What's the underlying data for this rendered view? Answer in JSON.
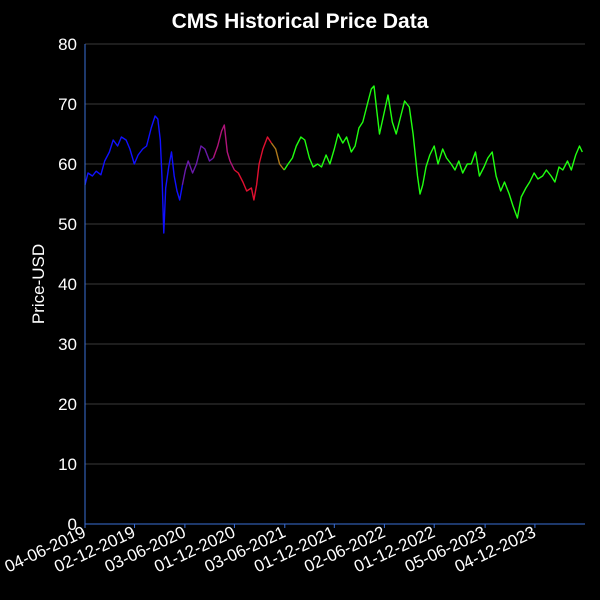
{
  "chart_data": {
    "type": "line",
    "title": "CMS Historical Price Data",
    "xlabel": "",
    "ylabel": "Price-USD",
    "ylim": [
      0,
      80
    ],
    "yticks": [
      0,
      10,
      20,
      30,
      40,
      50,
      60,
      70,
      80
    ],
    "xlim": [
      "2019-06-04",
      "2024-06-04"
    ],
    "xtick_labels": [
      "04-06-2019",
      "02-12-2019",
      "03-06-2020",
      "01-12-2020",
      "03-06-2021",
      "01-12-2021",
      "02-06-2022",
      "01-12-2022",
      "05-06-2023",
      "04-12-2023"
    ],
    "xtick_dates": [
      "2019-06-04",
      "2019-12-02",
      "2020-06-03",
      "2020-12-01",
      "2021-06-03",
      "2021-12-01",
      "2022-06-02",
      "2022-12-01",
      "2023-06-05",
      "2023-12-04"
    ],
    "grid": true,
    "colors": {
      "background": "#000000",
      "axis": "#3a6fd6",
      "grid": "#3a3a3a",
      "text": "#ffffff"
    },
    "series": [
      {
        "color": "#1010ff",
        "points": [
          [
            "2019-06-04",
            56.5
          ],
          [
            "2019-06-15",
            58.5
          ],
          [
            "2019-07-01",
            58.0
          ],
          [
            "2019-07-15",
            58.8
          ],
          [
            "2019-08-01",
            58.2
          ],
          [
            "2019-08-15",
            60.5
          ],
          [
            "2019-09-01",
            62.0
          ],
          [
            "2019-09-15",
            64.0
          ],
          [
            "2019-10-01",
            63.0
          ],
          [
            "2019-10-15",
            64.5
          ],
          [
            "2019-11-01",
            64.0
          ],
          [
            "2019-11-15",
            62.5
          ],
          [
            "2019-12-01",
            60.0
          ],
          [
            "2019-12-15",
            61.5
          ],
          [
            "2020-01-01",
            62.5
          ],
          [
            "2020-01-15",
            63.0
          ],
          [
            "2020-02-01",
            66.0
          ],
          [
            "2020-02-15",
            68.0
          ],
          [
            "2020-02-25",
            67.5
          ],
          [
            "2020-03-05",
            64.0
          ],
          [
            "2020-03-12",
            57.0
          ],
          [
            "2020-03-18",
            48.5
          ],
          [
            "2020-03-25",
            56.0
          ],
          [
            "2020-04-05",
            59.5
          ],
          [
            "2020-04-15",
            62.0
          ],
          [
            "2020-04-25",
            58.0
          ],
          [
            "2020-05-05",
            55.5
          ],
          [
            "2020-05-15",
            54.0
          ],
          [
            "2020-05-25",
            56.5
          ]
        ]
      },
      {
        "color": "#6a1aaa",
        "points": [
          [
            "2020-05-25",
            56.5
          ],
          [
            "2020-06-05",
            59.0
          ],
          [
            "2020-06-15",
            60.5
          ],
          [
            "2020-07-01",
            58.5
          ],
          [
            "2020-07-15",
            60.0
          ],
          [
            "2020-08-01",
            63.0
          ],
          [
            "2020-08-15",
            62.5
          ],
          [
            "2020-09-01",
            60.5
          ],
          [
            "2020-09-15",
            61.0
          ]
        ]
      },
      {
        "color": "#b0147a",
        "points": [
          [
            "2020-09-15",
            61.0
          ],
          [
            "2020-10-01",
            63.0
          ],
          [
            "2020-10-15",
            65.5
          ],
          [
            "2020-10-25",
            66.5
          ],
          [
            "2020-11-05",
            62.0
          ],
          [
            "2020-11-15",
            60.5
          ],
          [
            "2020-12-01",
            59.0
          ]
        ]
      },
      {
        "color": "#e01030",
        "points": [
          [
            "2020-12-01",
            59.0
          ],
          [
            "2020-12-15",
            58.5
          ],
          [
            "2021-01-01",
            57.0
          ],
          [
            "2021-01-15",
            55.5
          ],
          [
            "2021-02-01",
            56.0
          ],
          [
            "2021-02-10",
            54.0
          ],
          [
            "2021-02-20",
            56.5
          ],
          [
            "2021-03-01",
            60.0
          ],
          [
            "2021-03-15",
            62.5
          ],
          [
            "2021-04-01",
            64.5
          ],
          [
            "2021-04-15",
            63.5
          ]
        ]
      },
      {
        "color": "#b07a1a",
        "points": [
          [
            "2021-04-15",
            63.5
          ],
          [
            "2021-05-01",
            62.5
          ],
          [
            "2021-05-15",
            60.0
          ],
          [
            "2021-06-01",
            59.0
          ]
        ]
      },
      {
        "color": "#20ff10",
        "points": [
          [
            "2021-06-01",
            59.0
          ],
          [
            "2021-06-15",
            60.0
          ],
          [
            "2021-07-01",
            61.0
          ],
          [
            "2021-07-15",
            63.0
          ],
          [
            "2021-08-01",
            64.5
          ],
          [
            "2021-08-15",
            64.0
          ],
          [
            "2021-09-01",
            61.0
          ],
          [
            "2021-09-15",
            59.5
          ],
          [
            "2021-10-01",
            60.0
          ],
          [
            "2021-10-15",
            59.5
          ],
          [
            "2021-11-01",
            61.5
          ],
          [
            "2021-11-15",
            60.0
          ],
          [
            "2021-12-01",
            62.5
          ],
          [
            "2021-12-15",
            65.0
          ],
          [
            "2022-01-01",
            63.5
          ],
          [
            "2022-01-15",
            64.5
          ],
          [
            "2022-02-01",
            62.0
          ],
          [
            "2022-02-15",
            63.0
          ],
          [
            "2022-03-01",
            66.0
          ],
          [
            "2022-03-15",
            67.0
          ],
          [
            "2022-04-01",
            70.0
          ],
          [
            "2022-04-15",
            72.5
          ],
          [
            "2022-04-25",
            73.0
          ],
          [
            "2022-05-05",
            69.0
          ],
          [
            "2022-05-15",
            65.0
          ],
          [
            "2022-06-01",
            68.5
          ],
          [
            "2022-06-15",
            71.5
          ],
          [
            "2022-07-01",
            67.0
          ],
          [
            "2022-07-15",
            65.0
          ],
          [
            "2022-08-01",
            68.0
          ],
          [
            "2022-08-15",
            70.5
          ],
          [
            "2022-09-01",
            69.5
          ],
          [
            "2022-09-15",
            65.0
          ],
          [
            "2022-10-01",
            58.0
          ],
          [
            "2022-10-10",
            55.0
          ],
          [
            "2022-10-20",
            56.5
          ],
          [
            "2022-11-01",
            59.5
          ],
          [
            "2022-11-15",
            61.5
          ],
          [
            "2022-12-01",
            63.0
          ],
          [
            "2022-12-15",
            60.0
          ],
          [
            "2023-01-01",
            62.5
          ],
          [
            "2023-01-15",
            61.0
          ],
          [
            "2023-02-01",
            60.0
          ],
          [
            "2023-02-15",
            59.0
          ],
          [
            "2023-03-01",
            60.5
          ],
          [
            "2023-03-15",
            58.5
          ],
          [
            "2023-04-01",
            60.0
          ],
          [
            "2023-04-15",
            60.0
          ],
          [
            "2023-05-01",
            62.0
          ],
          [
            "2023-05-15",
            58.0
          ],
          [
            "2023-06-01",
            59.5
          ],
          [
            "2023-06-15",
            61.0
          ],
          [
            "2023-07-01",
            62.0
          ],
          [
            "2023-07-15",
            58.0
          ],
          [
            "2023-08-01",
            55.5
          ],
          [
            "2023-08-15",
            57.0
          ],
          [
            "2023-09-01",
            55.0
          ],
          [
            "2023-09-15",
            53.0
          ],
          [
            "2023-10-01",
            51.0
          ],
          [
            "2023-10-15",
            54.5
          ],
          [
            "2023-11-01",
            56.0
          ],
          [
            "2023-11-15",
            57.0
          ],
          [
            "2023-12-01",
            58.5
          ],
          [
            "2023-12-15",
            57.5
          ],
          [
            "2024-01-01",
            58.0
          ],
          [
            "2024-01-15",
            59.0
          ],
          [
            "2024-02-01",
            58.0
          ],
          [
            "2024-02-15",
            57.0
          ],
          [
            "2024-03-01",
            59.5
          ],
          [
            "2024-03-15",
            59.0
          ],
          [
            "2024-04-01",
            60.5
          ],
          [
            "2024-04-15",
            59.0
          ],
          [
            "2024-05-01",
            61.5
          ],
          [
            "2024-05-15",
            63.0
          ],
          [
            "2024-05-25",
            62.0
          ]
        ]
      }
    ]
  }
}
